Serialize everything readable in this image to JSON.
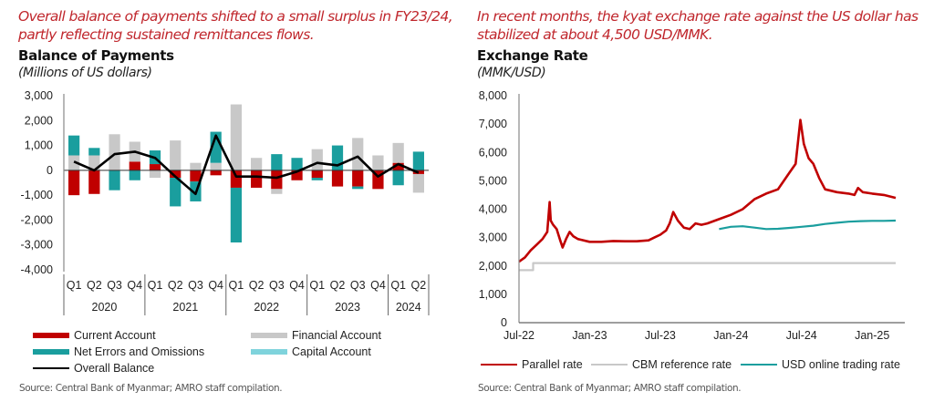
{
  "left": {
    "headline": "Overall balance of payments shifted to a small surplus in FY23/24, partly reflecting sustained remittances flows.",
    "source": "Source: Central Bank of Myanmar; AMRO staff compilation."
  },
  "right": {
    "headline": "In recent months, the kyat exchange rate against the US dollar has stabilized at about 4,500 USD/MMK.",
    "source": "Source: Central Bank of Myanmar; AMRO staff compilation."
  },
  "chart_data": [
    {
      "type": "bar",
      "stacked": true,
      "title": "Balance of Payments",
      "subtitle": "(Millions of US dollars)",
      "xlabel": "",
      "ylabel": "",
      "ylim": [
        -4000,
        3000
      ],
      "yticks": [
        3000,
        2000,
        1000,
        0,
        -1000,
        -2000,
        -3000,
        -4000
      ],
      "ytick_labels": [
        "3,000",
        "2,000",
        "1,000",
        "0",
        "-1,000",
        "-2,000",
        "-3,000",
        "-4,000"
      ],
      "categories": [
        "Q1",
        "Q2",
        "Q3",
        "Q4",
        "Q1",
        "Q2",
        "Q3",
        "Q4",
        "Q1",
        "Q2",
        "Q3",
        "Q4",
        "Q1",
        "Q2",
        "Q3",
        "Q4",
        "Q1",
        "Q2"
      ],
      "year_groups": [
        {
          "label": "2020",
          "count": 4
        },
        {
          "label": "2021",
          "count": 4
        },
        {
          "label": "2022",
          "count": 4
        },
        {
          "label": "2023",
          "count": 4
        },
        {
          "label": "2024",
          "count": 2
        }
      ],
      "series": [
        {
          "name": "Current Account",
          "kind": "bar",
          "color": "#c00000",
          "values": [
            -1000,
            -950,
            0,
            350,
            250,
            -300,
            -450,
            -200,
            -700,
            -700,
            -750,
            -400,
            -300,
            -650,
            -650,
            -750,
            300,
            -150
          ]
        },
        {
          "name": "Financial Account",
          "kind": "bar",
          "color": "#c8c8c8",
          "values": [
            600,
            600,
            1450,
            800,
            -300,
            1200,
            300,
            300,
            2650,
            500,
            -200,
            0,
            850,
            0,
            1300,
            600,
            800,
            -750
          ]
        },
        {
          "name": "Net Errors and Omissions",
          "kind": "bar",
          "color": "#1a9e9e",
          "values": [
            800,
            300,
            -800,
            -400,
            550,
            -1150,
            -800,
            1250,
            -2200,
            0,
            650,
            500,
            -100,
            1000,
            -100,
            0,
            -600,
            750
          ]
        },
        {
          "name": "Capital Account",
          "kind": "bar",
          "color": "#7fd3dc",
          "values": [
            0,
            0,
            0,
            0,
            0,
            0,
            0,
            0,
            0,
            0,
            0,
            0,
            0,
            0,
            0,
            0,
            0,
            0
          ]
        },
        {
          "name": "Overall Balance",
          "kind": "line",
          "color": "#000000",
          "values": [
            350,
            0,
            650,
            750,
            500,
            -250,
            -950,
            1400,
            -250,
            -250,
            -300,
            -50,
            300,
            200,
            550,
            -250,
            250,
            -100
          ]
        }
      ],
      "legend": {
        "placement": "bottom",
        "entries": [
          "Current Account",
          "Financial Account",
          "Net Errors and Omissions",
          "Capital Account",
          "Overall Balance"
        ]
      }
    },
    {
      "type": "line",
      "title": "Exchange Rate",
      "subtitle": "(MMK/USD)",
      "xlabel": "",
      "ylabel": "",
      "ylim": [
        0,
        8000
      ],
      "yticks": [
        0,
        1000,
        2000,
        3000,
        4000,
        5000,
        6000,
        7000,
        8000
      ],
      "ytick_labels": [
        "0",
        "1,000",
        "2,000",
        "3,000",
        "4,000",
        "5,000",
        "6,000",
        "7,000",
        "8,000"
      ],
      "x_unit": "months since Jul-22",
      "xlim": [
        0,
        32
      ],
      "xticks": [
        0,
        6,
        12,
        18,
        24,
        30
      ],
      "xtick_labels": [
        "Jul-22",
        "Jan-23",
        "Jul-23",
        "Jan-24",
        "Jul-24",
        "Jan-25"
      ],
      "series": [
        {
          "name": "Parallel rate",
          "color": "#c00000",
          "x": [
            0,
            0.5,
            1,
            1.5,
            2,
            2.4,
            2.6,
            2.7,
            2.9,
            3.2,
            3.5,
            3.7,
            4.0,
            4.3,
            4.6,
            5.0,
            6,
            7,
            8,
            9,
            10,
            11,
            11.5,
            12,
            12.5,
            12.8,
            13.1,
            13.5,
            14,
            14.5,
            15,
            15.5,
            16,
            17,
            18,
            19,
            20,
            21,
            22,
            23,
            23.5,
            23.9,
            24.2,
            24.6,
            25,
            25.5,
            26,
            27,
            28,
            28.5,
            28.8,
            29.2,
            30,
            31,
            32
          ],
          "y": [
            2150,
            2300,
            2550,
            2750,
            2950,
            3200,
            4250,
            3600,
            3450,
            3300,
            2900,
            2650,
            2950,
            3200,
            3050,
            2950,
            2850,
            2850,
            2880,
            2870,
            2870,
            2900,
            3000,
            3100,
            3250,
            3500,
            3900,
            3600,
            3350,
            3300,
            3500,
            3450,
            3500,
            3650,
            3800,
            4000,
            4350,
            4550,
            4700,
            5300,
            5600,
            7150,
            6300,
            5800,
            5600,
            5100,
            4700,
            4600,
            4550,
            4500,
            4750,
            4600,
            4550,
            4500,
            4400
          ]
        },
        {
          "name": "CBM reference rate",
          "color": "#c8c8c8",
          "x": [
            0,
            1.2,
            1.2,
            32
          ],
          "y": [
            1850,
            1850,
            2100,
            2100
          ]
        },
        {
          "name": "USD online trading rate",
          "color": "#1a9e9e",
          "x": [
            17,
            18,
            19,
            20,
            21,
            22,
            23,
            24,
            25,
            26,
            27,
            28,
            29,
            30,
            31,
            32
          ],
          "y": [
            3300,
            3380,
            3400,
            3350,
            3300,
            3310,
            3340,
            3380,
            3420,
            3480,
            3520,
            3560,
            3580,
            3590,
            3590,
            3600
          ]
        }
      ],
      "legend": {
        "placement": "bottom",
        "entries": [
          "Parallel rate",
          "CBM reference rate",
          "USD online trading rate"
        ]
      }
    }
  ]
}
